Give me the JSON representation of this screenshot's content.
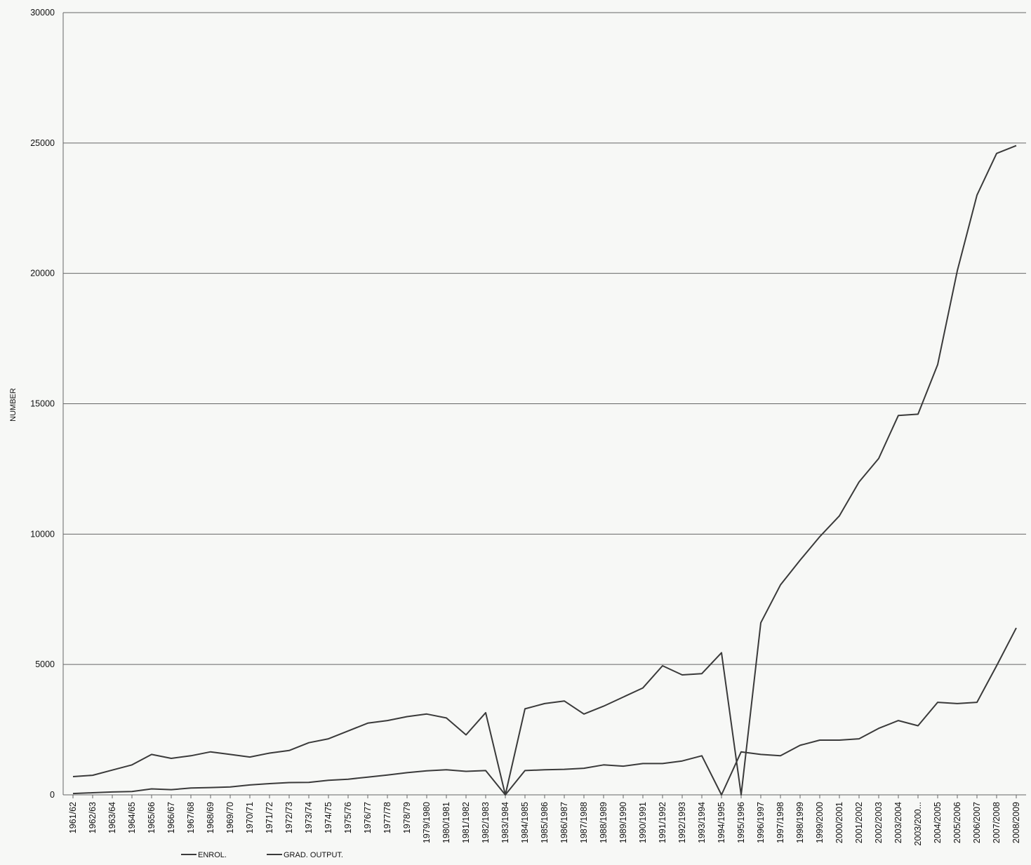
{
  "chart_data": {
    "type": "line",
    "ylabel": "NUMBER",
    "ylim": [
      0,
      30000
    ],
    "yticks": [
      0,
      5000,
      10000,
      15000,
      20000,
      25000,
      30000
    ],
    "grid": true,
    "legend_position": "bottom",
    "x": [
      "1961/62",
      "1962/63",
      "1963/64",
      "1964/65",
      "1965/66",
      "1966/67",
      "1967/68",
      "1968/69",
      "1969/70",
      "1970/71",
      "1971/72",
      "1972/73",
      "1973/74",
      "1974/75",
      "1975/76",
      "1976/77",
      "1977/78",
      "1978/79",
      "1979/1980",
      "1980/1981",
      "1981/1982",
      "1982/1983",
      "1983/1984",
      "1984/1985",
      "1985/1986",
      "1986/1987",
      "1987/1988",
      "1988/1989",
      "1989/1990",
      "1990/1991",
      "1991/1992",
      "1992/1993",
      "1993/1994",
      "1994/1995",
      "1995/1996",
      "1996/1997",
      "1997/1998",
      "1998/1999",
      "1999/2000",
      "2000/2001",
      "2001/2002",
      "2002/2003",
      "2003/2004",
      "2003/200...",
      "2004/2005",
      "2005/2006",
      "2006/2007",
      "2007/2008",
      "2008/2009"
    ],
    "series": [
      {
        "name": "ENROL.",
        "values": [
          700,
          750,
          950,
          1150,
          1550,
          1400,
          1500,
          1650,
          1550,
          1450,
          1600,
          1700,
          2000,
          2150,
          2450,
          2750,
          2850,
          3000,
          3100,
          2950,
          2300,
          3150,
          0,
          3300,
          3500,
          3600,
          3100,
          3400,
          3750,
          4100,
          4950,
          4600,
          4650,
          5450,
          0,
          6600,
          8050,
          9000,
          9900,
          10700,
          12000,
          12900,
          14550,
          14600,
          16500,
          20100,
          23000,
          24600,
          24900
        ]
      },
      {
        "name": "GRAD. OUTPUT.",
        "values": [
          50,
          80,
          110,
          130,
          230,
          200,
          260,
          280,
          300,
          380,
          430,
          470,
          480,
          560,
          600,
          680,
          760,
          850,
          920,
          960,
          900,
          930,
          0,
          930,
          960,
          980,
          1020,
          1150,
          1100,
          1200,
          1200,
          1300,
          1500,
          0,
          1650,
          1550,
          1500,
          1900,
          2100,
          2100,
          2150,
          2550,
          2850,
          2650,
          3550,
          3500,
          3550,
          4950,
          6400
        ]
      }
    ]
  }
}
